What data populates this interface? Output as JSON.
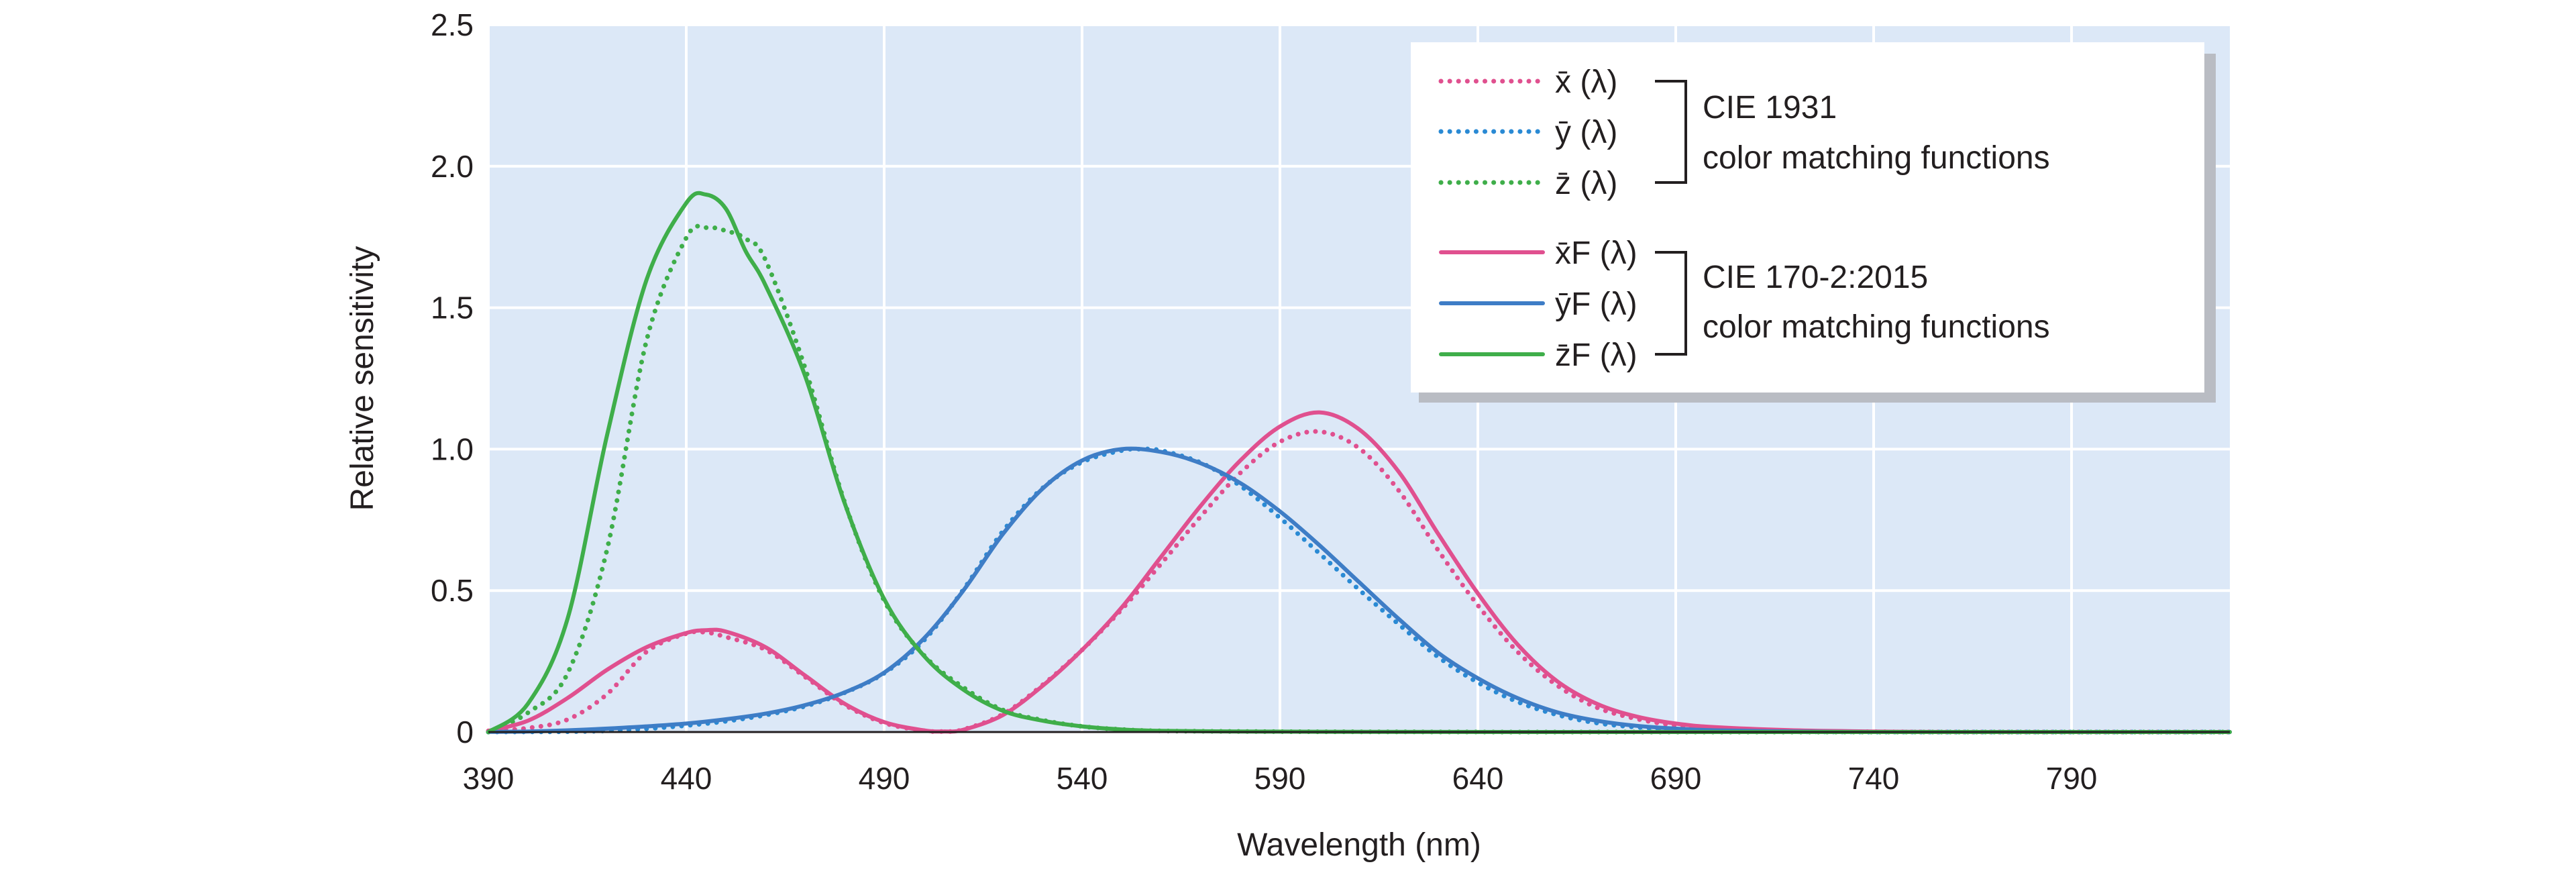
{
  "chart_data": {
    "type": "line",
    "xlabel": "Wavelength (nm)",
    "ylabel": "Relative sensitivity",
    "xlim": [
      390,
      830
    ],
    "ylim": [
      0,
      2.5
    ],
    "x_ticks": [
      "390",
      "440",
      "490",
      "540",
      "590",
      "640",
      "690",
      "740",
      "790"
    ],
    "y_ticks": [
      "0",
      "0.5",
      "1.0",
      "1.5",
      "2.0",
      "2.5"
    ],
    "grid": true,
    "legend_position": "top-right",
    "plot_background": "#dce8f7",
    "legend_groups": [
      {
        "label_line1": "CIE 1931",
        "label_line2": "color matching functions"
      },
      {
        "label_line1": "CIE 170-2:2015",
        "label_line2": "color matching functions"
      }
    ],
    "series": [
      {
        "name": "x̄ (λ)",
        "group": 0,
        "style": "dotted",
        "color": "#e0508f",
        "x": [
          390,
          400,
          410,
          420,
          430,
          440,
          445,
          450,
          460,
          470,
          480,
          490,
          500,
          505,
          510,
          520,
          530,
          540,
          550,
          560,
          570,
          580,
          590,
          600,
          610,
          620,
          630,
          640,
          650,
          660,
          670,
          680,
          690,
          700,
          720,
          740,
          760,
          780,
          800,
          830
        ],
        "y": [
          0.004,
          0.014,
          0.044,
          0.134,
          0.284,
          0.348,
          0.352,
          0.336,
          0.291,
          0.195,
          0.096,
          0.032,
          0.005,
          0.002,
          0.009,
          0.063,
          0.166,
          0.29,
          0.433,
          0.595,
          0.762,
          0.916,
          1.026,
          1.062,
          1.003,
          0.854,
          0.642,
          0.448,
          0.284,
          0.165,
          0.087,
          0.047,
          0.023,
          0.011,
          0.003,
          0.001,
          0.0,
          0.0,
          0.0,
          0.0
        ]
      },
      {
        "name": "ȳ (λ)",
        "group": 0,
        "style": "dotted",
        "color": "#2a8ad4",
        "x": [
          390,
          400,
          410,
          420,
          430,
          440,
          450,
          460,
          470,
          480,
          490,
          500,
          510,
          520,
          530,
          540,
          550,
          555,
          560,
          570,
          580,
          590,
          600,
          610,
          620,
          630,
          640,
          650,
          660,
          670,
          680,
          690,
          700,
          720,
          740,
          760,
          780,
          800,
          830
        ],
        "y": [
          0.0001,
          0.0004,
          0.0012,
          0.004,
          0.0116,
          0.023,
          0.038,
          0.06,
          0.091,
          0.139,
          0.208,
          0.323,
          0.503,
          0.71,
          0.862,
          0.954,
          0.995,
          1.0,
          0.995,
          0.952,
          0.87,
          0.757,
          0.631,
          0.503,
          0.381,
          0.265,
          0.175,
          0.107,
          0.061,
          0.032,
          0.017,
          0.008,
          0.004,
          0.001,
          0.0,
          0.0,
          0.0,
          0.0,
          0.0
        ]
      },
      {
        "name": "z̄ (λ)",
        "group": 0,
        "style": "dotted",
        "color": "#3fae4a",
        "x": [
          390,
          400,
          410,
          420,
          430,
          440,
          445,
          450,
          455,
          460,
          470,
          480,
          490,
          500,
          510,
          520,
          530,
          540,
          550,
          560,
          580,
          600,
          650,
          700,
          830
        ],
        "y": [
          0.0,
          0.068,
          0.207,
          0.646,
          1.386,
          1.747,
          1.783,
          1.772,
          1.744,
          1.669,
          1.288,
          0.813,
          0.465,
          0.272,
          0.158,
          0.078,
          0.042,
          0.02,
          0.009,
          0.004,
          0.002,
          0.001,
          0.0,
          0.0,
          0.0
        ]
      },
      {
        "name": "x̄F (λ)",
        "group": 1,
        "style": "solid",
        "color": "#e0508f",
        "x": [
          390,
          400,
          410,
          420,
          430,
          440,
          445,
          450,
          460,
          470,
          480,
          490,
          500,
          505,
          510,
          520,
          530,
          540,
          550,
          560,
          570,
          580,
          590,
          600,
          610,
          620,
          630,
          640,
          650,
          660,
          670,
          680,
          690,
          700,
          720,
          740,
          760,
          780,
          800,
          830
        ],
        "y": [
          0.004,
          0.04,
          0.12,
          0.22,
          0.3,
          0.35,
          0.36,
          0.355,
          0.3,
          0.2,
          0.1,
          0.035,
          0.006,
          0.002,
          0.008,
          0.06,
          0.163,
          0.29,
          0.44,
          0.62,
          0.8,
          0.96,
          1.08,
          1.13,
          1.07,
          0.92,
          0.7,
          0.49,
          0.31,
          0.18,
          0.1,
          0.055,
          0.03,
          0.017,
          0.006,
          0.002,
          0.0,
          0.0,
          0.0,
          0.0
        ]
      },
      {
        "name": "ȳF (λ)",
        "group": 1,
        "style": "solid",
        "color": "#3e7dc6",
        "x": [
          390,
          400,
          410,
          420,
          430,
          440,
          450,
          460,
          470,
          480,
          490,
          500,
          510,
          520,
          530,
          540,
          550,
          560,
          570,
          580,
          590,
          600,
          610,
          620,
          630,
          640,
          650,
          660,
          670,
          680,
          690,
          700,
          720,
          740,
          760,
          780,
          800,
          830
        ],
        "y": [
          0.0004,
          0.002,
          0.006,
          0.012,
          0.02,
          0.03,
          0.045,
          0.065,
          0.095,
          0.14,
          0.21,
          0.33,
          0.5,
          0.7,
          0.86,
          0.96,
          1.0,
          0.99,
          0.95,
          0.88,
          0.78,
          0.66,
          0.53,
          0.4,
          0.28,
          0.19,
          0.12,
          0.07,
          0.04,
          0.022,
          0.012,
          0.006,
          0.002,
          0.0,
          0.0,
          0.0,
          0.0,
          0.0
        ]
      },
      {
        "name": "z̄F (λ)",
        "group": 1,
        "style": "solid",
        "color": "#3fae4a",
        "x": [
          390,
          400,
          410,
          420,
          430,
          440,
          445,
          450,
          455,
          460,
          470,
          480,
          490,
          500,
          510,
          520,
          530,
          540,
          550,
          560,
          580,
          600,
          650,
          700,
          830
        ],
        "y": [
          0.0,
          0.1,
          0.4,
          1.05,
          1.6,
          1.87,
          1.9,
          1.85,
          1.7,
          1.58,
          1.26,
          0.81,
          0.47,
          0.27,
          0.15,
          0.075,
          0.04,
          0.02,
          0.009,
          0.004,
          0.002,
          0.001,
          0.0,
          0.0,
          0.0
        ]
      }
    ]
  }
}
